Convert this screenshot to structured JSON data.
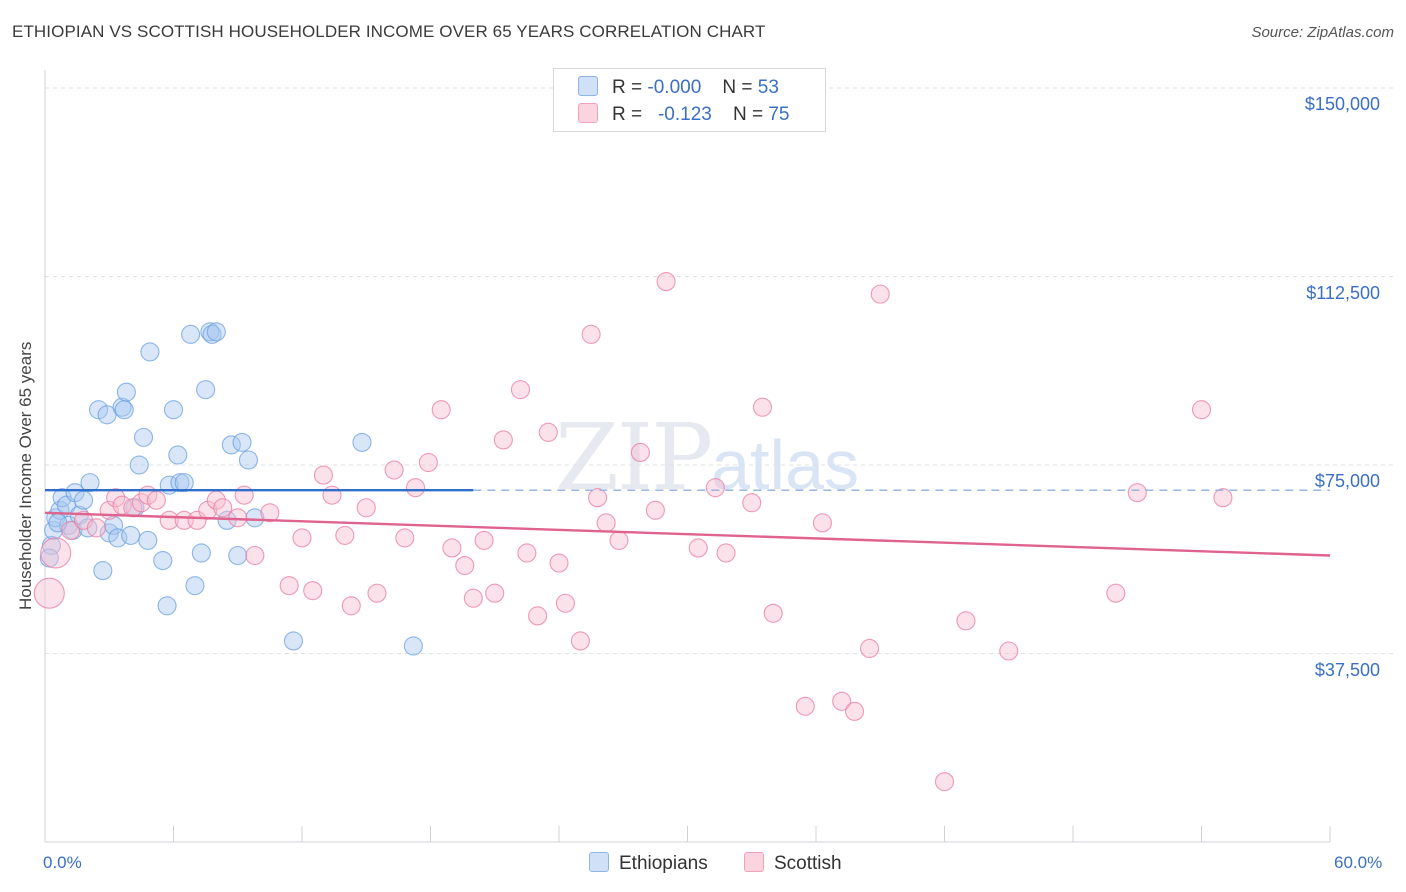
{
  "header": {
    "title": "ETHIOPIAN VS SCOTTISH HOUSEHOLDER INCOME OVER 65 YEARS CORRELATION CHART",
    "source": "Source: ZipAtlas.com"
  },
  "watermark": {
    "zip": "ZIP",
    "atlas": "atlas"
  },
  "legend": {
    "rows": [
      {
        "r_label": "R =",
        "r_value": "-0.000",
        "n_label": "N =",
        "n_value": "53",
        "color": "#a9c8f0"
      },
      {
        "r_label": "R =",
        "r_value": "-0.123",
        "n_label": "N =",
        "n_value": "75",
        "color": "#f7bfd0"
      }
    ]
  },
  "bottom_legend": [
    {
      "label": "Ethiopians",
      "color": "#a9c8f0"
    },
    {
      "label": "Scottish",
      "color": "#f7bfd0"
    }
  ],
  "chart_data": {
    "type": "scatter",
    "title": "ETHIOPIAN VS SCOTTISH HOUSEHOLDER INCOME OVER 65 YEARS CORRELATION CHART",
    "xlabel": "",
    "ylabel": "Householder Income Over 65 years",
    "xlim": [
      0,
      60
    ],
    "ylim": [
      0,
      152000
    ],
    "x_tick_labels": [
      "0.0%",
      "60.0%"
    ],
    "y_ticks": [
      37500,
      75000,
      112500,
      150000
    ],
    "y_tick_labels": [
      "$37,500",
      "$75,000",
      "$112,500",
      "$150,000"
    ],
    "grid": true,
    "legend_position": "top-center",
    "series": [
      {
        "name": "Ethiopians",
        "color": "#6a9fe0",
        "fill": "#a9c8f0",
        "trend": {
          "x": [
            0,
            20
          ],
          "y": [
            70000,
            70000
          ],
          "dashed_to_x": 60
        },
        "points": [
          [
            0.3,
            59000
          ],
          [
            0.4,
            62000
          ],
          [
            0.5,
            64500
          ],
          [
            0.7,
            66000
          ],
          [
            0.8,
            68500
          ],
          [
            1.0,
            67000
          ],
          [
            1.1,
            63000
          ],
          [
            1.3,
            62000
          ],
          [
            1.4,
            69500
          ],
          [
            1.6,
            65000
          ],
          [
            1.8,
            68000
          ],
          [
            2.0,
            62500
          ],
          [
            2.1,
            71500
          ],
          [
            2.5,
            86000
          ],
          [
            2.7,
            54000
          ],
          [
            2.9,
            85000
          ],
          [
            3.0,
            61500
          ],
          [
            3.2,
            63000
          ],
          [
            3.4,
            60500
          ],
          [
            3.6,
            86500
          ],
          [
            3.7,
            86000
          ],
          [
            3.8,
            89500
          ],
          [
            4.0,
            61000
          ],
          [
            4.2,
            66500
          ],
          [
            4.4,
            75000
          ],
          [
            4.6,
            80500
          ],
          [
            4.8,
            60000
          ],
          [
            4.9,
            97500
          ],
          [
            5.5,
            56000
          ],
          [
            5.8,
            71000
          ],
          [
            6.0,
            86000
          ],
          [
            6.2,
            77000
          ],
          [
            6.3,
            71500
          ],
          [
            6.5,
            71500
          ],
          [
            5.7,
            47000
          ],
          [
            6.8,
            101000
          ],
          [
            7.0,
            51000
          ],
          [
            7.3,
            57500
          ],
          [
            7.5,
            90000
          ],
          [
            7.7,
            101500
          ],
          [
            7.8,
            101000
          ],
          [
            8.0,
            101500
          ],
          [
            8.5,
            64000
          ],
          [
            8.7,
            79000
          ],
          [
            9.0,
            57000
          ],
          [
            9.2,
            79500
          ],
          [
            9.5,
            76000
          ],
          [
            9.8,
            64500
          ],
          [
            11.6,
            40000
          ],
          [
            14.8,
            79500
          ],
          [
            17.2,
            39000
          ],
          [
            0.2,
            56500
          ],
          [
            0.6,
            63500
          ]
        ]
      },
      {
        "name": "Scottish",
        "color": "#e97aa0",
        "fill": "#f7bfd0",
        "trend": {
          "x": [
            0,
            60
          ],
          "y": [
            65500,
            57000
          ]
        },
        "points": [
          [
            0.2,
            49500
          ],
          [
            0.5,
            57500
          ],
          [
            1.2,
            62000
          ],
          [
            1.8,
            64000
          ],
          [
            2.4,
            62500
          ],
          [
            3.0,
            66000
          ],
          [
            3.3,
            68500
          ],
          [
            3.6,
            67000
          ],
          [
            4.1,
            66500
          ],
          [
            4.5,
            67500
          ],
          [
            4.8,
            69000
          ],
          [
            5.2,
            68000
          ],
          [
            5.8,
            64000
          ],
          [
            6.5,
            64000
          ],
          [
            7.1,
            64000
          ],
          [
            7.6,
            66000
          ],
          [
            8.0,
            68000
          ],
          [
            8.3,
            66500
          ],
          [
            9.0,
            64500
          ],
          [
            9.3,
            69000
          ],
          [
            9.8,
            57000
          ],
          [
            10.5,
            65500
          ],
          [
            11.4,
            51000
          ],
          [
            12.0,
            60500
          ],
          [
            12.5,
            50000
          ],
          [
            13.0,
            73000
          ],
          [
            13.4,
            69000
          ],
          [
            14.0,
            61000
          ],
          [
            14.3,
            47000
          ],
          [
            15.0,
            66500
          ],
          [
            15.5,
            49500
          ],
          [
            16.3,
            74000
          ],
          [
            16.8,
            60500
          ],
          [
            17.3,
            70500
          ],
          [
            17.9,
            75500
          ],
          [
            18.5,
            86000
          ],
          [
            19.0,
            58500
          ],
          [
            19.6,
            55000
          ],
          [
            20.0,
            48500
          ],
          [
            20.5,
            60000
          ],
          [
            21.0,
            49500
          ],
          [
            21.4,
            80000
          ],
          [
            22.2,
            90000
          ],
          [
            22.5,
            57500
          ],
          [
            23.0,
            45000
          ],
          [
            23.5,
            81500
          ],
          [
            24.0,
            55500
          ],
          [
            24.3,
            47500
          ],
          [
            25.0,
            40000
          ],
          [
            25.5,
            101000
          ],
          [
            25.8,
            68500
          ],
          [
            26.2,
            63500
          ],
          [
            26.8,
            60000
          ],
          [
            27.8,
            77500
          ],
          [
            28.5,
            66000
          ],
          [
            29.0,
            111500
          ],
          [
            30.5,
            58500
          ],
          [
            31.3,
            70500
          ],
          [
            31.8,
            57500
          ],
          [
            33.0,
            67500
          ],
          [
            33.5,
            86500
          ],
          [
            34.0,
            45500
          ],
          [
            35.5,
            27000
          ],
          [
            36.3,
            63500
          ],
          [
            37.2,
            28000
          ],
          [
            37.8,
            26000
          ],
          [
            38.5,
            38500
          ],
          [
            39.0,
            109000
          ],
          [
            42.0,
            12000
          ],
          [
            43.0,
            44000
          ],
          [
            45.0,
            38000
          ],
          [
            50.0,
            49500
          ],
          [
            51.0,
            69500
          ],
          [
            54.0,
            86000
          ],
          [
            55.0,
            68500
          ]
        ]
      }
    ]
  }
}
